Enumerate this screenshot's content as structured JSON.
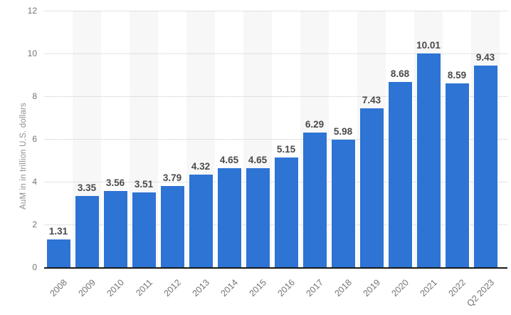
{
  "chart_data": {
    "type": "bar",
    "categories": [
      "2008",
      "2009",
      "2010",
      "2011",
      "2012",
      "2013",
      "2014",
      "2015",
      "2016",
      "2017",
      "2018",
      "2019",
      "2020",
      "2021",
      "2022",
      "Q2 2023"
    ],
    "values": [
      1.31,
      3.35,
      3.56,
      3.51,
      3.79,
      4.32,
      4.65,
      4.65,
      5.15,
      6.29,
      5.98,
      7.43,
      8.68,
      10.01,
      8.59,
      9.43
    ],
    "value_labels": [
      "1.31",
      "3.35",
      "3.56",
      "3.51",
      "3.79",
      "4.32",
      "4.65",
      "4.65",
      "5.15",
      "6.29",
      "5.98",
      "7.43",
      "8.68",
      "10.01",
      "8.59",
      "9.43"
    ],
    "title": "",
    "xlabel": "",
    "ylabel": "AuM in in trillion U.S. dollars",
    "ylim": [
      0,
      12
    ],
    "yticks": [
      0,
      2,
      4,
      6,
      8,
      10,
      12
    ],
    "grid": "horizontal-dotted",
    "legend": "none",
    "colors": {
      "bar": "#2d74d4",
      "column_band": "#f7f7f7",
      "gridline": "#c9c9c9",
      "axis_line": "#1a1a1a",
      "value_label": "#4a4a4a",
      "tick_label": "#737373",
      "axis_title": "#8f8f8f",
      "background": "#ffffff"
    }
  }
}
